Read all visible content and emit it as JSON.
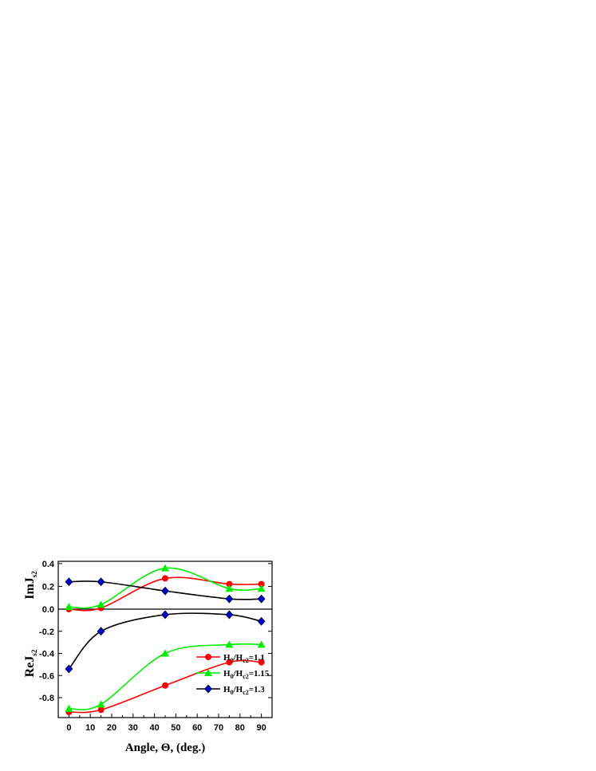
{
  "chart_data": {
    "type": "line",
    "xlabel": "Angle, Θ, (deg.)",
    "xlim": [
      -5,
      95
    ],
    "xticks": [
      0,
      10,
      20,
      30,
      40,
      50,
      60,
      70,
      80,
      90
    ],
    "panels": [
      {
        "id": "top",
        "ylabel_main": "ImJ",
        "ylabel_sub": "s2",
        "ylim": [
          0.0,
          0.42
        ],
        "yticks": [
          "0.0",
          "0.2",
          "0.4"
        ],
        "ytick_values": [
          0.0,
          0.2,
          0.4
        ]
      },
      {
        "id": "bottom",
        "ylabel_main": "ReJ",
        "ylabel_sub": "s2",
        "ylim": [
          -0.98,
          0.0
        ],
        "yticks": [
          "-0.8",
          "-0.6",
          "-0.4",
          "-0.2"
        ],
        "ytick_values": [
          -0.8,
          -0.6,
          -0.4,
          -0.2
        ]
      }
    ],
    "x": [
      0,
      15,
      45,
      75,
      90
    ],
    "series": [
      {
        "legend_parts": [
          "H",
          "0",
          "/H",
          "c2",
          "=1.1"
        ],
        "color": "#ff0000",
        "marker": "circle",
        "im": [
          0.0,
          0.01,
          0.27,
          0.22,
          0.22
        ],
        "re": [
          -0.93,
          -0.91,
          -0.69,
          -0.48,
          -0.48
        ]
      },
      {
        "legend_parts": [
          "H",
          "0",
          "/H",
          "c2",
          "=1.15"
        ],
        "color": "#00ee00",
        "marker": "triangle",
        "im": [
          0.02,
          0.04,
          0.36,
          0.18,
          0.18
        ],
        "re": [
          -0.9,
          -0.86,
          -0.4,
          -0.32,
          -0.32
        ]
      },
      {
        "legend_parts": [
          "H",
          "0",
          "/H",
          "c2",
          "=1.3"
        ],
        "color": "#000000",
        "marker_color": "#0000cc",
        "marker": "diamond",
        "im": [
          0.24,
          0.24,
          0.16,
          0.09,
          0.09
        ],
        "re": [
          -0.54,
          -0.2,
          -0.05,
          -0.05,
          -0.11
        ]
      }
    ],
    "legend_position": "lower-right of bottom panel",
    "grid": false
  }
}
